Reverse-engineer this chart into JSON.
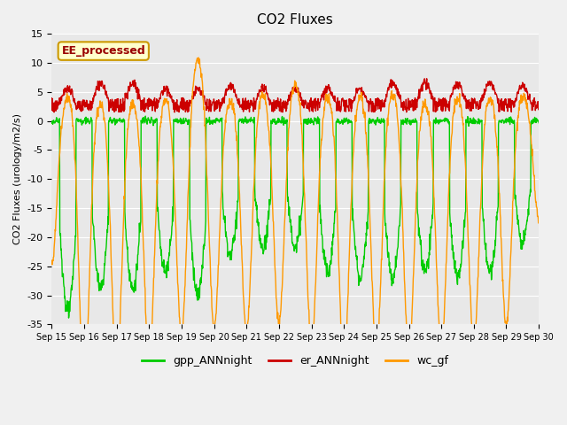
{
  "title": "CO2 Fluxes",
  "ylabel": "CO2 Fluxes (urology/m2/s)",
  "ylim": [
    -35,
    15
  ],
  "yticks": [
    -35,
    -30,
    -25,
    -20,
    -15,
    -10,
    -5,
    0,
    5,
    10,
    15
  ],
  "n_points": 1440,
  "days": 15,
  "xtick_positions": [
    0,
    1,
    2,
    3,
    4,
    5,
    6,
    7,
    8,
    9,
    10,
    11,
    12,
    13,
    14,
    15
  ],
  "xtick_labels": [
    "Sep 15",
    "Sep 16",
    "Sep 17",
    "Sep 18",
    "Sep 19",
    "Sep 20",
    "Sep 21",
    "Sep 22",
    "Sep 23",
    "Sep 24",
    "Sep 25",
    "Sep 26",
    "Sep 27",
    "Sep 28",
    "Sep 29",
    "Sep 30"
  ],
  "colors": {
    "gpp": "#00CC00",
    "er": "#CC0000",
    "wc": "#FF9900"
  },
  "legend_labels": [
    "gpp_ANNnight",
    "er_ANNnight",
    "wc_gf"
  ],
  "annotation_text": "EE_processed",
  "annotation_color": "#990000",
  "annotation_bg": "#FFFFCC",
  "plot_bg": "#E8E8E8",
  "linewidth": 1.0
}
